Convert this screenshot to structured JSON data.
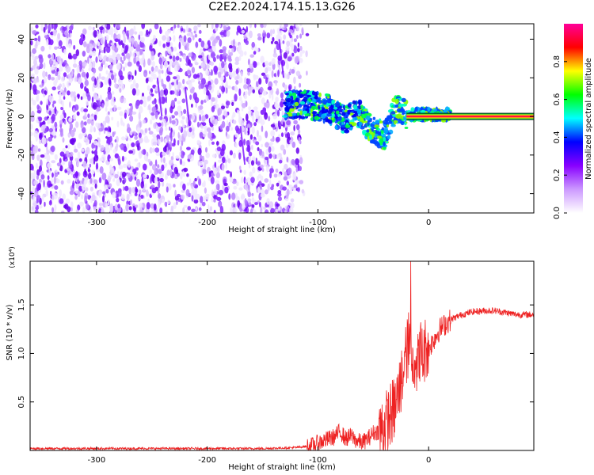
{
  "title": "C2E2.2024.174.15.13.G26",
  "chart_data": [
    {
      "type": "heatmap",
      "title": "C2E2.2024.174.15.13.G26",
      "xlabel": "Height of straight line (km)",
      "ylabel": "Frequency (Hz)",
      "xlim": [
        -360,
        95
      ],
      "ylim": [
        -50,
        48
      ],
      "xticks": [
        -300,
        -200,
        -100,
        0
      ],
      "yticks": [
        -40,
        -20,
        0,
        20,
        40
      ],
      "colorbar": {
        "label": "Normalized spectral amplitude",
        "range": [
          0.0,
          1.0
        ],
        "ticks": [
          0.0,
          0.2,
          0.4,
          0.6,
          0.8
        ],
        "colors": [
          "#ffffff",
          "#cc99ff",
          "#8800ff",
          "#0000ff",
          "#00ffff",
          "#00ff00",
          "#ffff00",
          "#ff0000",
          "#ff0099"
        ]
      },
      "features": {
        "noise_region_km": [
          -360,
          -115
        ],
        "signal_track": [
          {
            "x": -130,
            "f": 6
          },
          {
            "x": -110,
            "f": 6
          },
          {
            "x": -90,
            "f": 4
          },
          {
            "x": -75,
            "f": -2
          },
          {
            "x": -65,
            "f": 3
          },
          {
            "x": -55,
            "f": -5
          },
          {
            "x": -40,
            "f": -10
          },
          {
            "x": -30,
            "f": 4
          },
          {
            "x": -20,
            "f": 1
          },
          {
            "x": 0,
            "f": 1
          },
          {
            "x": 95,
            "f": 0
          }
        ],
        "steady_line_km": [
          -20,
          95
        ],
        "steady_line_freq_hz": 0
      }
    },
    {
      "type": "line",
      "xlabel": "Height of straight line (km)",
      "ylabel": "SNR (10 * v/v)",
      "multiplier": "(x10⁴)",
      "xlim": [
        -360,
        95
      ],
      "ylim": [
        0,
        1.95
      ],
      "xticks": [
        -300,
        -200,
        -100,
        0
      ],
      "yticks": [
        0.5,
        1.0,
        1.5
      ],
      "ytick_labels": [
        "0.5",
        "1.0",
        "1.5"
      ],
      "series": [
        {
          "name": "SNR",
          "color": "#ee2222",
          "x": [
            -360,
            -300,
            -250,
            -200,
            -150,
            -120,
            -105,
            -95,
            -85,
            -80,
            -75,
            -70,
            -65,
            -60,
            -55,
            -50,
            -45,
            -40,
            -35,
            -30,
            -25,
            -22,
            -20,
            -18,
            -15,
            -12,
            -10,
            -8,
            -5,
            -2,
            0,
            5,
            10,
            15,
            20,
            30,
            40,
            50,
            60,
            70,
            80,
            95
          ],
          "y": [
            0.02,
            0.02,
            0.02,
            0.02,
            0.02,
            0.03,
            0.05,
            0.1,
            0.14,
            0.2,
            0.12,
            0.15,
            0.1,
            0.08,
            0.12,
            0.18,
            0.2,
            0.25,
            0.35,
            0.45,
            0.7,
            0.9,
            1.0,
            1.1,
            0.9,
            1.0,
            0.85,
            1.05,
            0.95,
            1.1,
            1.05,
            1.15,
            1.25,
            1.3,
            1.35,
            1.4,
            1.43,
            1.44,
            1.44,
            1.42,
            1.4,
            1.4
          ]
        }
      ]
    }
  ]
}
